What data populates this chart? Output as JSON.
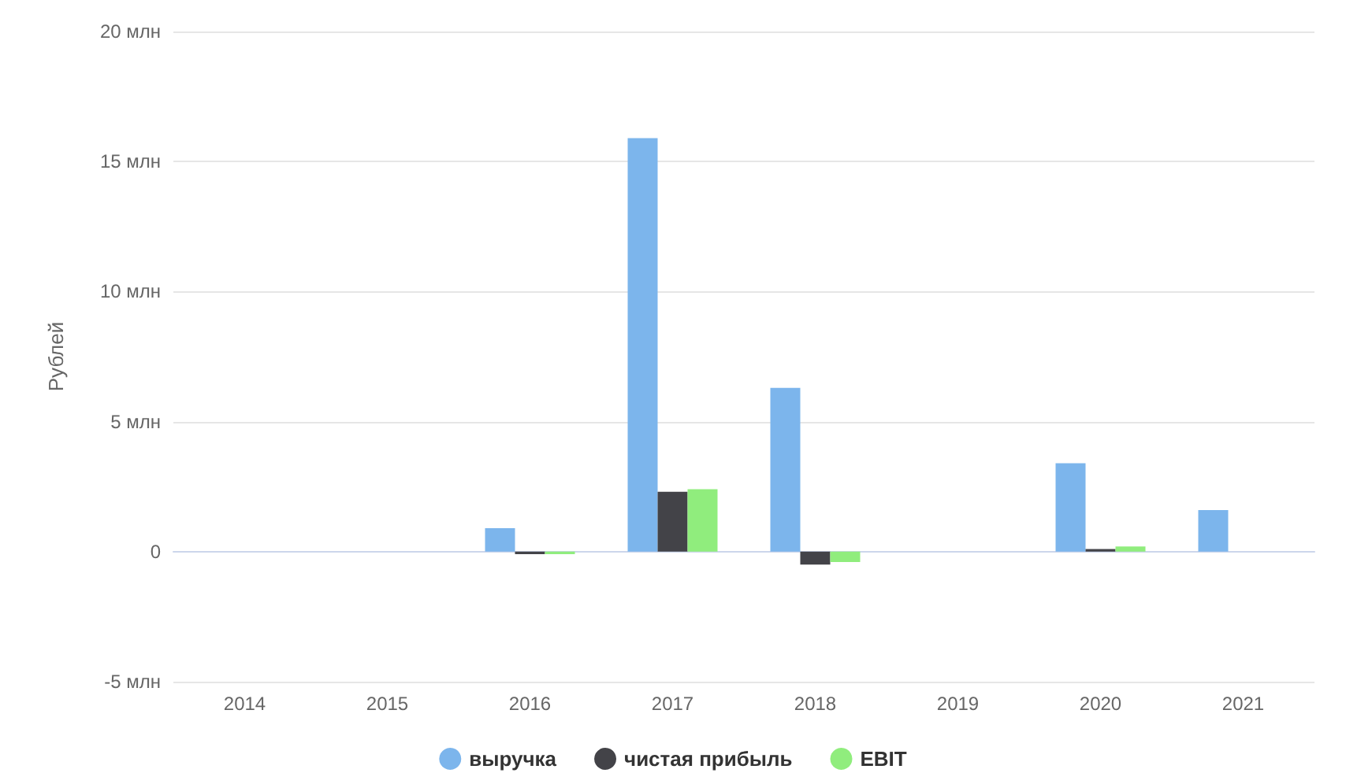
{
  "chart_data": {
    "type": "bar",
    "ylabel": "Рублей",
    "categories": [
      "2014",
      "2015",
      "2016",
      "2017",
      "2018",
      "2019",
      "2020",
      "2021"
    ],
    "series": [
      {
        "name": "выручка",
        "color": "#7cb5ec",
        "values": [
          null,
          null,
          0.9,
          15.9,
          6.3,
          null,
          3.4,
          1.6
        ]
      },
      {
        "name": "чистая прибыль",
        "color": "#434348",
        "values": [
          null,
          null,
          -0.1,
          2.3,
          -0.5,
          null,
          0.1,
          null
        ]
      },
      {
        "name": "EBIT",
        "color": "#90ed7d",
        "values": [
          null,
          null,
          -0.1,
          2.4,
          -0.4,
          null,
          0.2,
          null
        ]
      }
    ],
    "ylim": [
      -5,
      20
    ],
    "yticks": [
      {
        "value": -5,
        "label": "-5 млн"
      },
      0,
      {
        "value": 5,
        "label": "5 млн"
      },
      {
        "value": 10,
        "label": "10 млн"
      },
      {
        "value": 15,
        "label": "15 млн"
      },
      {
        "value": 20,
        "label": "20 млн"
      }
    ],
    "grid": "y",
    "legend": "bottom"
  }
}
